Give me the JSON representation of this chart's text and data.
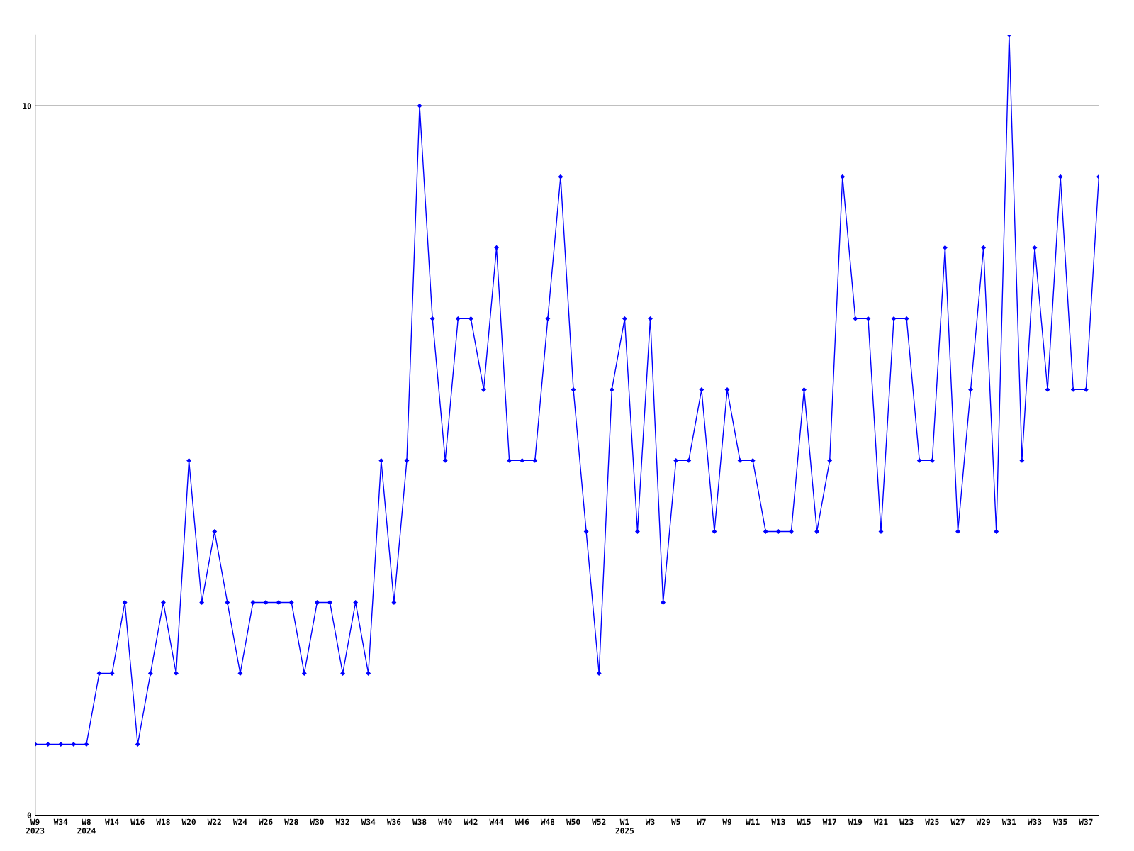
{
  "chart_data": {
    "type": "line",
    "categories": [
      "W9\n2023",
      null,
      "W34",
      null,
      "W8\n2024",
      null,
      "W14",
      null,
      "W16",
      null,
      "W18",
      null,
      "W20",
      null,
      "W22",
      null,
      "W24",
      null,
      "W26",
      null,
      "W28",
      null,
      "W30",
      null,
      "W32",
      null,
      "W34",
      null,
      "W36",
      null,
      "W38",
      null,
      "W40",
      null,
      "W42",
      null,
      "W44",
      null,
      "W46",
      null,
      "W48",
      null,
      "W50",
      null,
      "W52",
      null,
      "W1\n2025",
      null,
      "W3",
      null,
      "W5",
      null,
      "W7",
      null,
      "W9",
      null,
      "W11",
      null,
      "W13",
      null,
      "W15",
      null,
      "W17",
      null,
      "W19",
      null,
      "W21",
      null,
      "W23",
      null,
      "W25",
      null,
      "W27",
      null,
      "W29",
      null,
      "W31",
      null,
      "W33",
      null,
      "W35",
      null,
      "W37",
      null
    ],
    "series": [
      {
        "color": "#0000ff",
        "values": [
          1,
          1,
          1,
          1,
          1,
          2,
          2,
          3,
          1,
          2,
          3,
          2,
          5,
          3,
          4,
          3,
          2,
          3,
          3,
          3,
          3,
          2,
          3,
          3,
          2,
          3,
          2,
          5,
          3,
          5,
          10,
          7,
          5,
          7,
          7,
          6,
          8,
          5,
          5,
          5,
          7,
          9,
          6,
          4,
          2,
          6,
          7,
          4,
          7,
          3,
          5,
          5,
          6,
          4,
          6,
          5,
          5,
          4,
          4,
          4,
          6,
          4,
          5,
          9,
          7,
          7,
          4,
          7,
          7,
          5,
          5,
          8,
          4,
          6,
          8,
          4,
          11,
          5,
          8,
          6,
          9,
          6,
          6,
          9
        ]
      }
    ],
    "ylim": [
      0,
      11
    ],
    "yticks": [
      0,
      10
    ],
    "grid": "y",
    "marker": "diamond",
    "line_style": "solid"
  }
}
